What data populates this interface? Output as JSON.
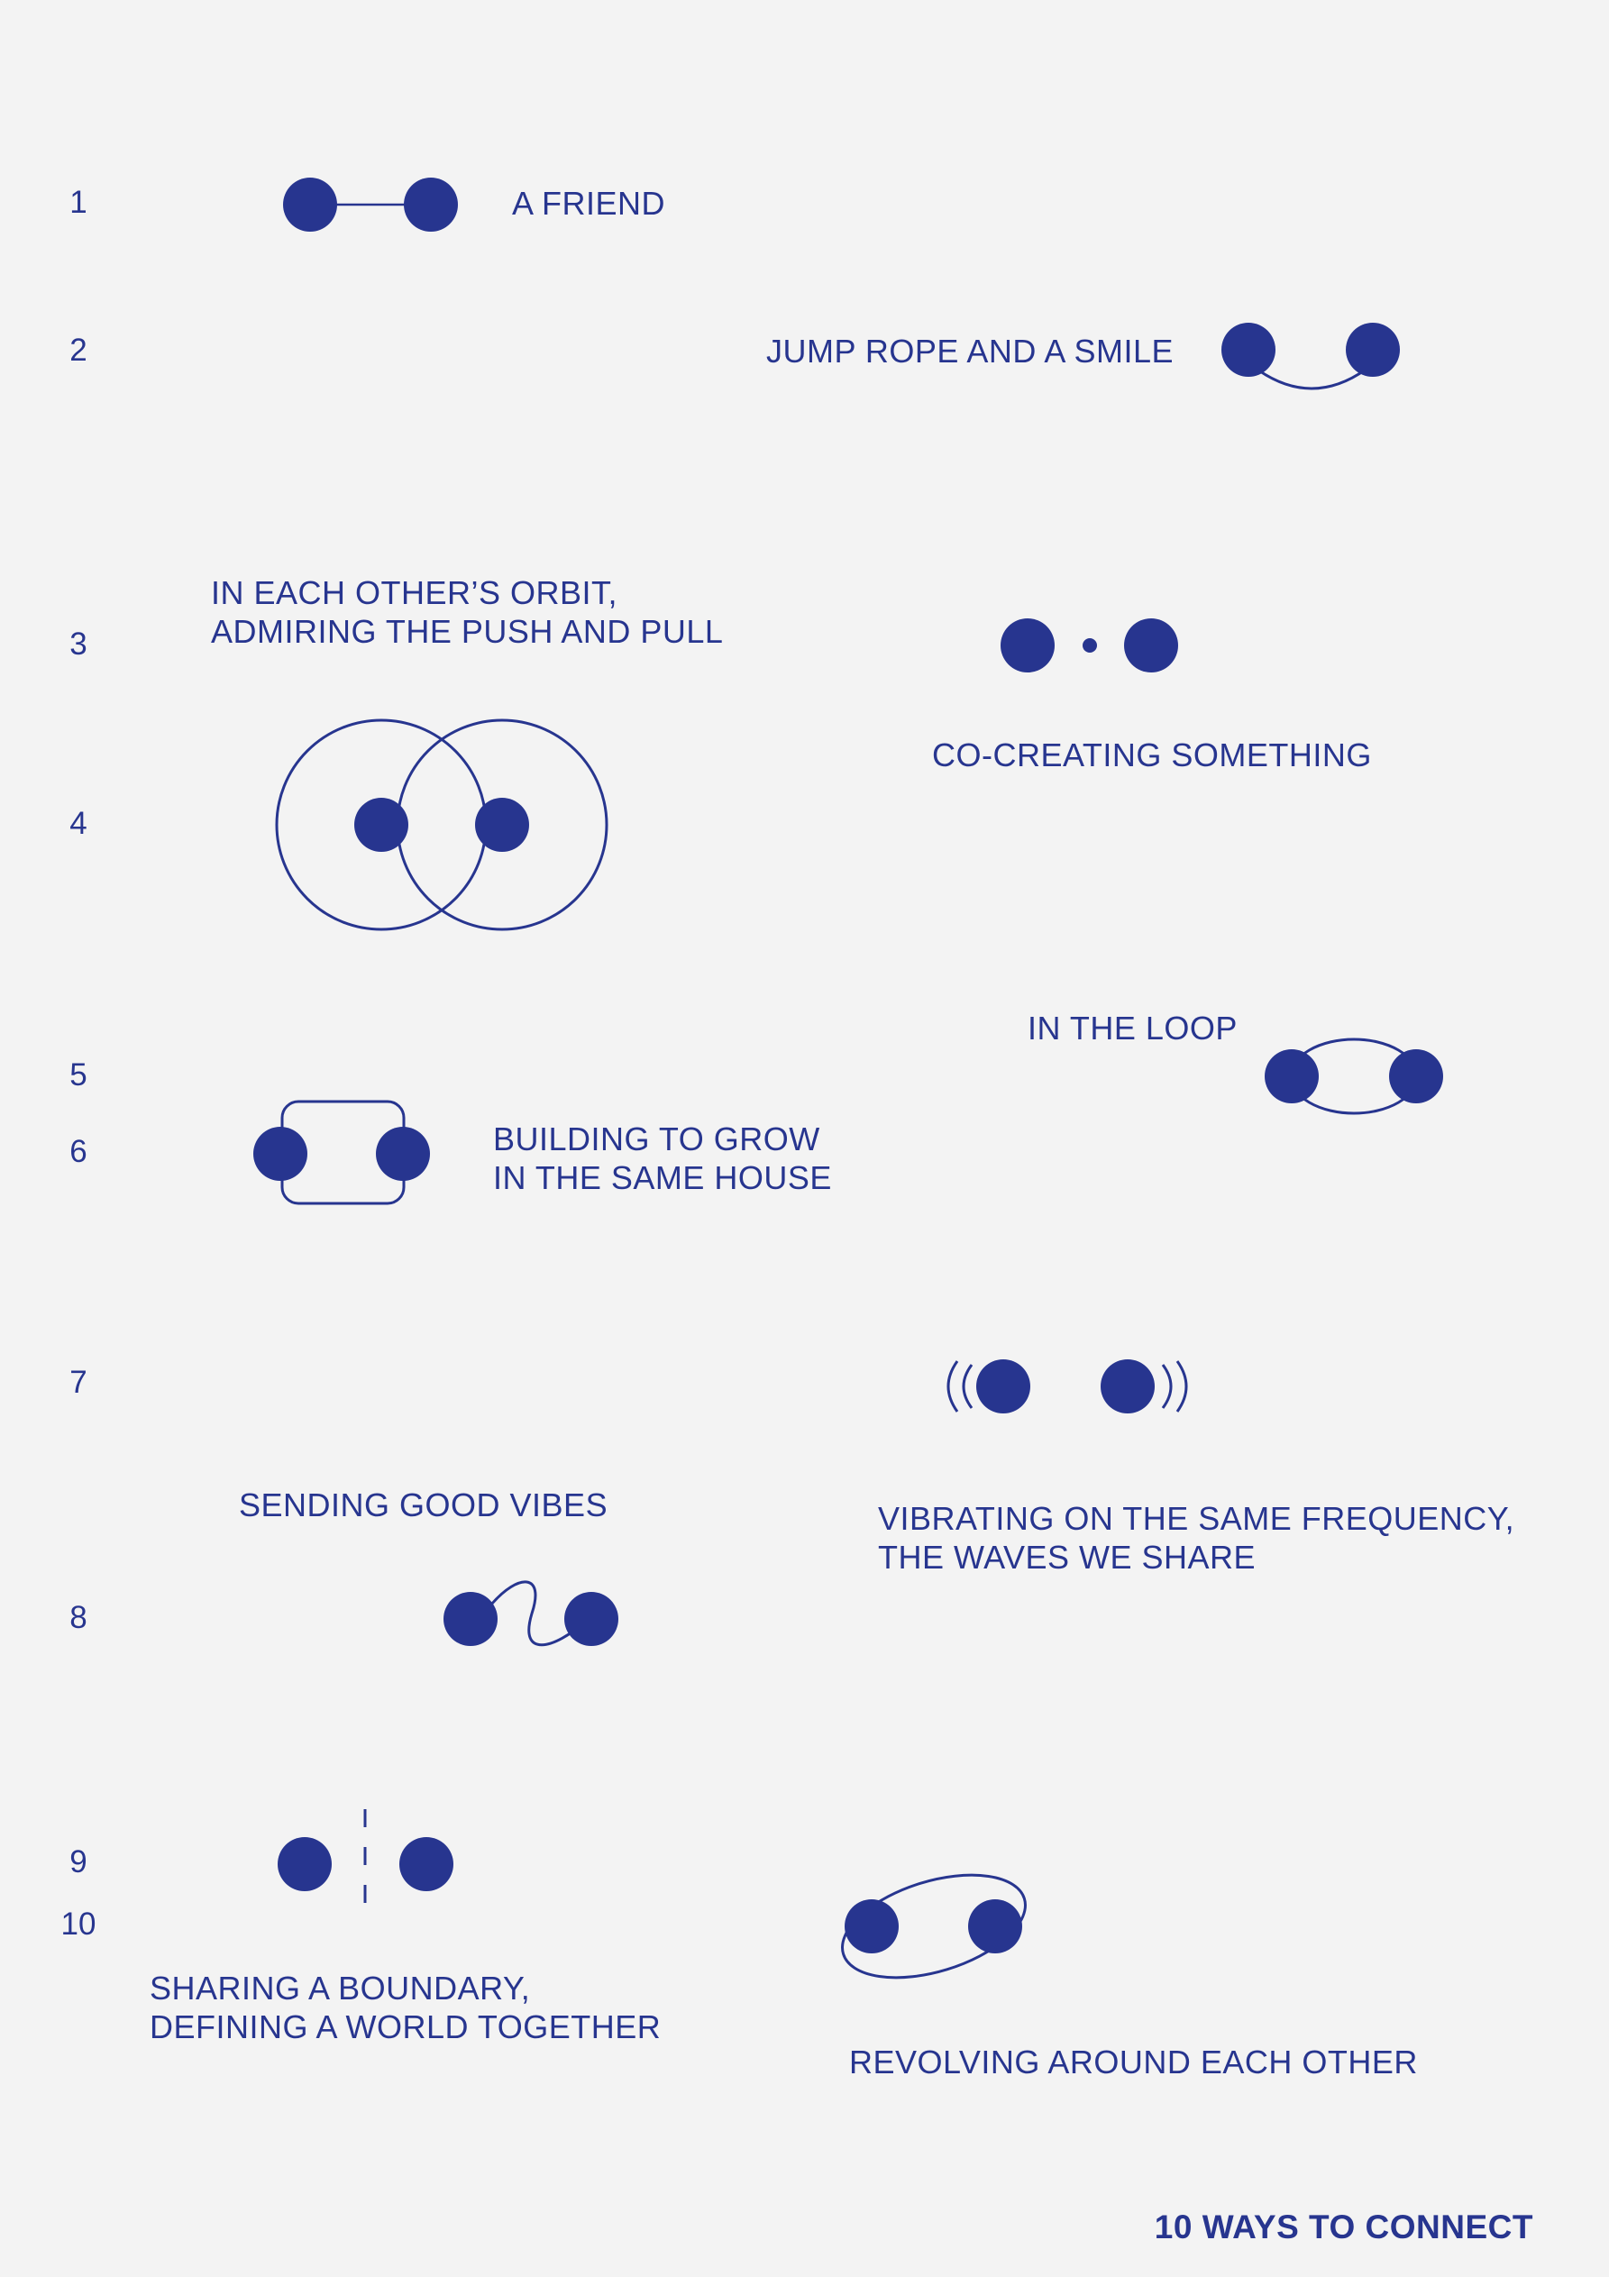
{
  "numbers": [
    "1",
    "2",
    "3",
    "4",
    "5",
    "6",
    "7",
    "8",
    "9",
    "10"
  ],
  "labels": {
    "l1": "A FRIEND",
    "l2": "JUMP ROPE AND A SMILE",
    "l3_a": "IN EACH OTHER’S ORBIT,",
    "l3_b": "ADMIRING THE PUSH AND PULL",
    "l4": "CO-CREATING SOMETHING",
    "l5": "IN THE LOOP",
    "l6_a": "BUILDING TO GROW",
    "l6_b": "IN THE SAME HOUSE",
    "l7": "SENDING GOOD VIBES",
    "l8_a": "VIBRATING ON THE SAME FREQUENCY,",
    "l8_b": "THE WAVES WE SHARE",
    "l9_a": "SHARING A BOUNDARY,",
    "l9_b": "DEFINING A WORLD TOGETHER",
    "l10": "REVOLVING AROUND EACH OTHER"
  },
  "title": "10 WAYS TO CONNECT",
  "colors": {
    "ink": "#27358f",
    "background": "#f3f3f3"
  }
}
